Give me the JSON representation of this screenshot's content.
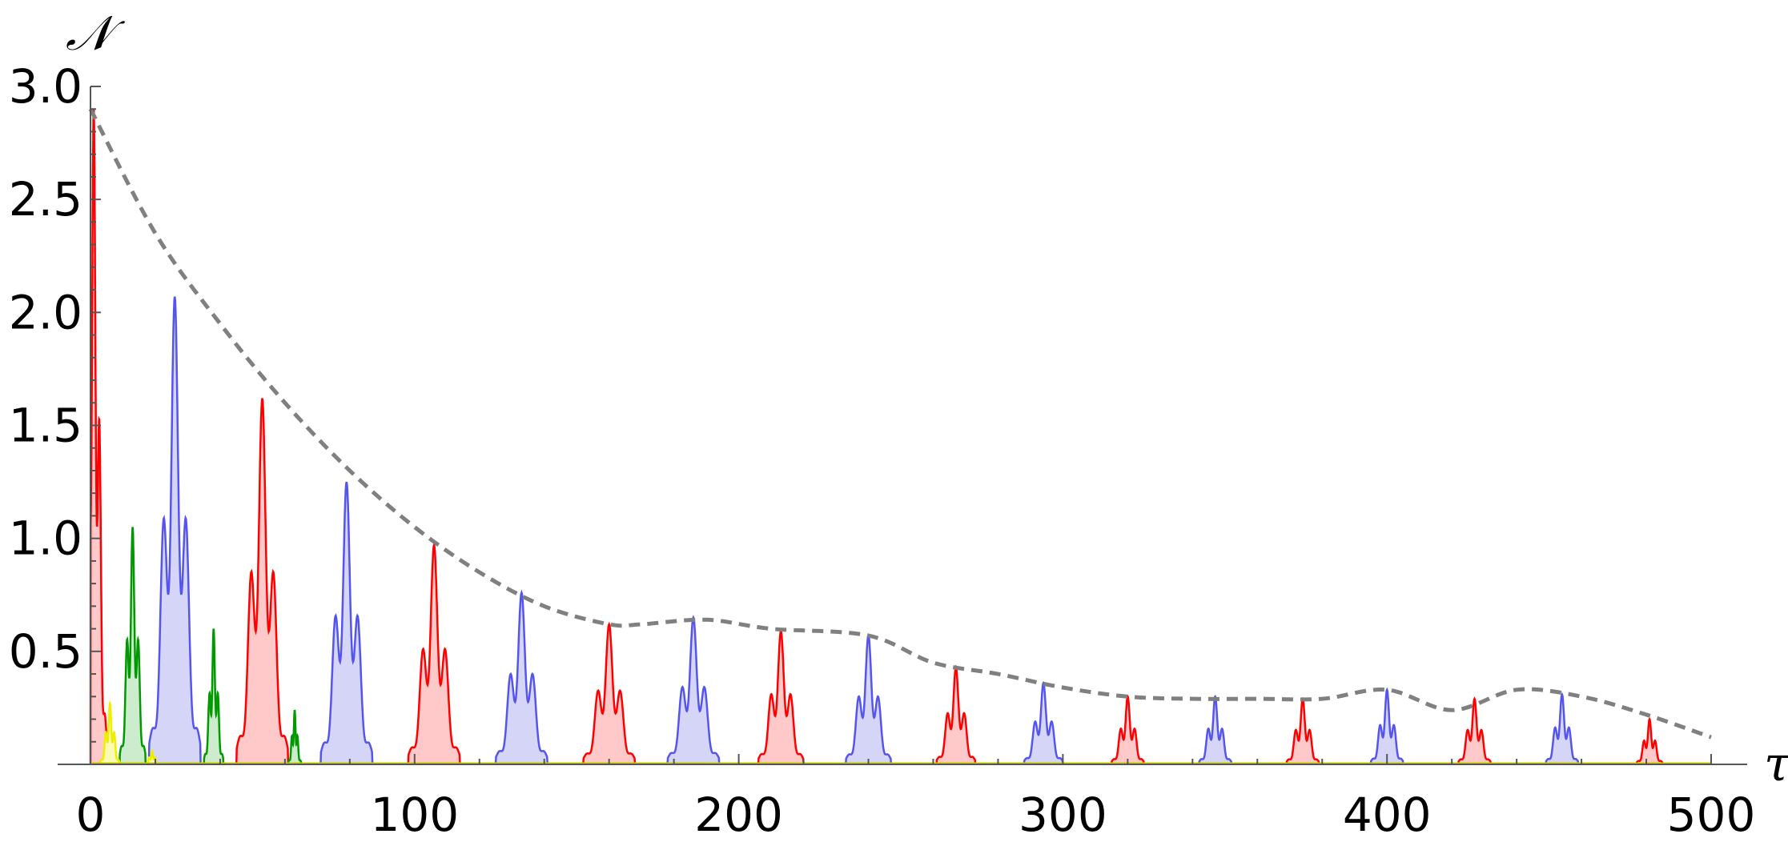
{
  "chart_data": {
    "type": "area",
    "xlabel": "τ",
    "ylabel": "𝒩",
    "xlim": [
      0,
      500
    ],
    "ylim": [
      0,
      3.0
    ],
    "x_ticks": [
      0,
      100,
      200,
      300,
      400,
      500
    ],
    "x_tick_labels": [
      "0",
      "100",
      "200",
      "300",
      "400",
      "500"
    ],
    "y_ticks": [
      0.5,
      1.0,
      1.5,
      2.0,
      2.5,
      3.0
    ],
    "y_tick_labels": [
      "0.5",
      "1.0",
      "1.5",
      "2.0",
      "2.5",
      "3.0"
    ],
    "grid": false,
    "legend": "none",
    "colors": {
      "red_stroke": "#ff0000",
      "red_fill": "#ffc9c9",
      "blue_stroke": "#5555ee",
      "blue_fill": "#d5d5f8",
      "green_stroke": "#009900",
      "green_fill": "#cdeccd",
      "yellow_stroke": "#eeee00",
      "yellow_fill": "#fbfbb6",
      "envelope": "#808080"
    },
    "series": [
      {
        "color": "red",
        "peaks": [
          {
            "center": 1,
            "height": 2.9,
            "width": 4
          },
          {
            "center": 53,
            "height": 1.62,
            "width": 8
          },
          {
            "center": 106,
            "height": 0.97,
            "width": 8
          },
          {
            "center": 160,
            "height": 0.62,
            "width": 8
          },
          {
            "center": 213,
            "height": 0.59,
            "width": 7
          },
          {
            "center": 267,
            "height": 0.43,
            "width": 6
          },
          {
            "center": 320,
            "height": 0.3,
            "width": 5
          },
          {
            "center": 374,
            "height": 0.29,
            "width": 5
          },
          {
            "center": 427,
            "height": 0.29,
            "width": 5
          },
          {
            "center": 481,
            "height": 0.2,
            "width": 4
          }
        ]
      },
      {
        "color": "blue",
        "peaks": [
          {
            "center": 26,
            "height": 2.07,
            "width": 8
          },
          {
            "center": 79,
            "height": 1.25,
            "width": 8
          },
          {
            "center": 133,
            "height": 0.76,
            "width": 8
          },
          {
            "center": 186,
            "height": 0.65,
            "width": 8
          },
          {
            "center": 240,
            "height": 0.57,
            "width": 7
          },
          {
            "center": 294,
            "height": 0.36,
            "width": 6
          },
          {
            "center": 347,
            "height": 0.3,
            "width": 5
          },
          {
            "center": 400,
            "height": 0.33,
            "width": 5
          },
          {
            "center": 454,
            "height": 0.31,
            "width": 5
          }
        ]
      },
      {
        "color": "green",
        "peaks": [
          {
            "center": 13,
            "height": 1.05,
            "width": 4
          },
          {
            "center": 38,
            "height": 0.6,
            "width": 3
          },
          {
            "center": 63,
            "height": 0.24,
            "width": 2
          }
        ]
      },
      {
        "color": "yellow",
        "peaks": [
          {
            "center": 6,
            "height": 0.27,
            "width": 3
          },
          {
            "center": 19,
            "height": 0.06,
            "width": 2
          }
        ]
      }
    ],
    "envelope": {
      "style": "dashed",
      "x": [
        0,
        20,
        40,
        60,
        80,
        100,
        120,
        140,
        160,
        170,
        190,
        210,
        240,
        260,
        280,
        300,
        320,
        340,
        360,
        380,
        400,
        420,
        440,
        460,
        480,
        500
      ],
      "y": [
        2.9,
        2.35,
        1.95,
        1.6,
        1.3,
        1.05,
        0.85,
        0.7,
        0.62,
        0.62,
        0.64,
        0.6,
        0.57,
        0.45,
        0.4,
        0.34,
        0.3,
        0.29,
        0.29,
        0.29,
        0.33,
        0.24,
        0.33,
        0.3,
        0.22,
        0.12
      ]
    }
  }
}
